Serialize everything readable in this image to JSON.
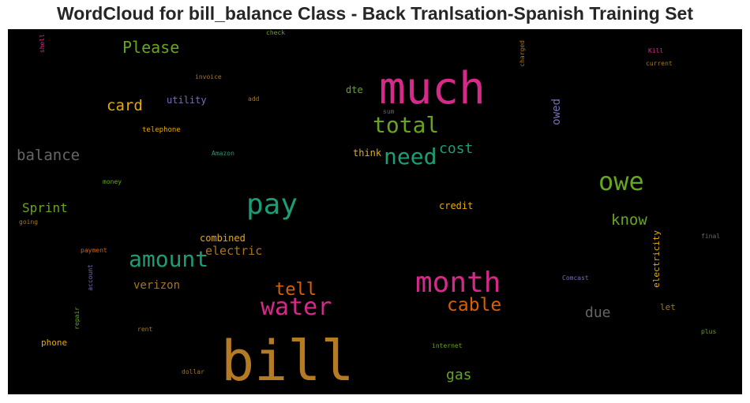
{
  "title": "WordCloud for bill_balance Class - Back Tranlsation-Spanish Training Set",
  "words": {
    "bill": {
      "text": "bill",
      "color": "#b57a24"
    },
    "much": {
      "text": "much",
      "color": "#d6298a"
    },
    "pay": {
      "text": "pay",
      "color": "#1b9e77"
    },
    "month": {
      "text": "month",
      "color": "#d6298a"
    },
    "owe": {
      "text": "owe",
      "color": "#66a61e"
    },
    "water": {
      "text": "water",
      "color": "#d6298a"
    },
    "total": {
      "text": "total",
      "color": "#66a61e"
    },
    "need": {
      "text": "need",
      "color": "#1b9e77"
    },
    "amount": {
      "text": "amount",
      "color": "#1b9e77"
    },
    "cable": {
      "text": "cable",
      "color": "#d95f02"
    },
    "tell": {
      "text": "tell",
      "color": "#d95f02"
    },
    "please": {
      "text": "Please",
      "color": "#66a61e"
    },
    "card": {
      "text": "card",
      "color": "#e6ab02"
    },
    "balance": {
      "text": "balance",
      "color": "#666666"
    },
    "cost": {
      "text": "cost",
      "color": "#1b9e77"
    },
    "know": {
      "text": "know",
      "color": "#66a61e"
    },
    "sprint": {
      "text": "Sprint",
      "color": "#66a61e"
    },
    "electric": {
      "text": "electric",
      "color": "#a6761d"
    },
    "due": {
      "text": "due",
      "color": "#666666"
    },
    "gas": {
      "text": "gas",
      "color": "#66a61e"
    },
    "verizon": {
      "text": "verizon",
      "color": "#a6761d"
    },
    "owed": {
      "text": "owed",
      "color": "#7570b3"
    },
    "utility": {
      "text": "utility",
      "color": "#7570b3"
    },
    "combined": {
      "text": "combined",
      "color": "#e6ab02"
    },
    "credit": {
      "text": "credit",
      "color": "#e6ab02"
    },
    "think": {
      "text": "think",
      "color": "#e6ab02"
    },
    "dte": {
      "text": "dte",
      "color": "#66a61e"
    },
    "phone": {
      "text": "phone",
      "color": "#e6ab02"
    },
    "electricity": {
      "text": "electricity",
      "color": "#e6ab02"
    },
    "let": {
      "text": "let",
      "color": "#a6761d"
    },
    "telephone": {
      "text": "telephone",
      "color": "#e6ab02"
    },
    "invoice": {
      "text": "invoice",
      "color": "#a6761d"
    },
    "add": {
      "text": "add",
      "color": "#a6761d"
    },
    "sum": {
      "text": "sum",
      "color": "#666666"
    },
    "amazon": {
      "text": "Amazon",
      "color": "#1b9e77"
    },
    "money": {
      "text": "money",
      "color": "#66a61e"
    },
    "going": {
      "text": "going",
      "color": "#a6761d"
    },
    "payment": {
      "text": "payment",
      "color": "#d95f02"
    },
    "account": {
      "text": "account",
      "color": "#7570b3"
    },
    "repair": {
      "text": "repair",
      "color": "#66a61e"
    },
    "rent": {
      "text": "rent",
      "color": "#a6761d"
    },
    "dollar": {
      "text": "dollar",
      "color": "#a6761d"
    },
    "internet": {
      "text": "internet",
      "color": "#66a61e"
    },
    "comcast": {
      "text": "Comcast",
      "color": "#7570b3"
    },
    "final": {
      "text": "final",
      "color": "#666666"
    },
    "plus": {
      "text": "plus",
      "color": "#66a61e"
    },
    "kill": {
      "text": "Kill",
      "color": "#d6298a"
    },
    "current": {
      "text": "current",
      "color": "#a6761d"
    },
    "charged": {
      "text": "charged",
      "color": "#a6761d"
    },
    "check": {
      "text": "check",
      "color": "#66a61e"
    },
    "shell": {
      "text": "shell",
      "color": "#d6298a"
    }
  }
}
